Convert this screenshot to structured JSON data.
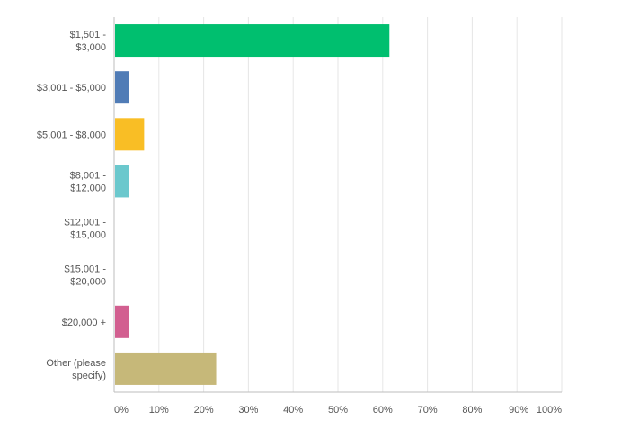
{
  "chart_data": {
    "type": "bar",
    "orientation": "horizontal",
    "categories": [
      [
        "$1,501 -",
        "$3,000"
      ],
      [
        "$3,001 - $5,000"
      ],
      [
        "$5,001 - $8,000"
      ],
      [
        "$8,001 -",
        "$12,000"
      ],
      [
        "$12,001 -",
        "$15,000"
      ],
      [
        "$15,001 -",
        "$20,000"
      ],
      [
        "$20,000 +"
      ],
      [
        "Other (please",
        "specify)"
      ]
    ],
    "values": [
      61.3,
      3.2,
      6.5,
      3.2,
      0,
      0,
      3.2,
      22.6
    ],
    "colors": [
      "#00bf6f",
      "#507cb6",
      "#f9be25",
      "#6bc8cd",
      "#8a6fb0",
      "#a8b23d",
      "#d25f90",
      "#c6b879"
    ],
    "xlim": [
      0,
      100
    ],
    "x_ticks": [
      "0%",
      "10%",
      "20%",
      "30%",
      "40%",
      "50%",
      "60%",
      "70%",
      "80%",
      "90%",
      "100%"
    ],
    "grid": true,
    "legend": "none"
  }
}
